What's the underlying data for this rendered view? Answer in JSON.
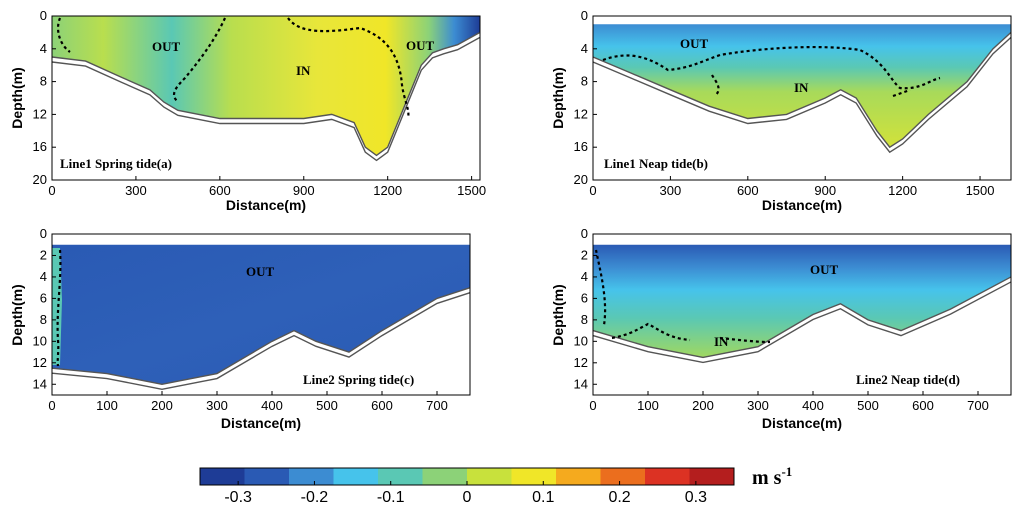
{
  "chart_data": [
    {
      "type": "heatmap",
      "label": "Line1 Spring tide(a)",
      "xlabel": "Distance(m)",
      "ylabel": "Depth(m)",
      "xlim": [
        0,
        1530
      ],
      "ylim": [
        0,
        20
      ],
      "xticks": [
        "0",
        "300",
        "600",
        "900",
        "1200",
        "1500"
      ],
      "yticks": [
        "0",
        "4",
        "8",
        "12",
        "16",
        "20"
      ],
      "surface_depth": 0,
      "bottom_profile": [
        [
          0,
          5
        ],
        [
          120,
          5.5
        ],
        [
          250,
          7.5
        ],
        [
          350,
          9
        ],
        [
          400,
          10.5
        ],
        [
          450,
          11.5
        ],
        [
          600,
          12.5
        ],
        [
          900,
          12.5
        ],
        [
          1000,
          12
        ],
        [
          1080,
          13
        ],
        [
          1120,
          16
        ],
        [
          1160,
          17
        ],
        [
          1200,
          16
        ],
        [
          1260,
          11
        ],
        [
          1320,
          6
        ],
        [
          1360,
          4.5
        ],
        [
          1400,
          4
        ],
        [
          1450,
          3.5
        ],
        [
          1530,
          2
        ]
      ],
      "annotations": [
        {
          "text": "OUT",
          "x": 400,
          "depth": 4
        },
        {
          "text": "IN",
          "x": 920,
          "depth": 7
        },
        {
          "text": "OUT",
          "x": 1430,
          "depth": 4
        }
      ]
    },
    {
      "type": "heatmap",
      "label": "Line1 Neap tide(b)",
      "xlabel": "Distance(m)",
      "ylabel": "Depth(m)",
      "xlim": [
        0,
        1620
      ],
      "ylim": [
        0,
        20
      ],
      "xticks": [
        "0",
        "300",
        "600",
        "900",
        "1200",
        "1500"
      ],
      "yticks": [
        "0",
        "4",
        "8",
        "12",
        "16",
        "20"
      ],
      "surface_depth": 1,
      "bottom_profile": [
        [
          0,
          5
        ],
        [
          150,
          7
        ],
        [
          300,
          9
        ],
        [
          450,
          11
        ],
        [
          600,
          12.5
        ],
        [
          750,
          12
        ],
        [
          900,
          10
        ],
        [
          960,
          9
        ],
        [
          1020,
          10
        ],
        [
          1100,
          14
        ],
        [
          1150,
          16
        ],
        [
          1200,
          15
        ],
        [
          1300,
          12
        ],
        [
          1450,
          8
        ],
        [
          1550,
          4
        ],
        [
          1620,
          2
        ]
      ],
      "annotations": [
        {
          "text": "OUT",
          "x": 420,
          "depth": 3.5
        },
        {
          "text": "IN",
          "x": 790,
          "depth": 9
        }
      ]
    },
    {
      "type": "heatmap",
      "label": "Line2 Spring tide(c)",
      "xlabel": "Distance(m)",
      "ylabel": "Depth(m)",
      "xlim": [
        0,
        760
      ],
      "ylim": [
        0,
        15
      ],
      "xticks": [
        "0",
        "100",
        "200",
        "300",
        "400",
        "500",
        "600",
        "700"
      ],
      "yticks": [
        "0",
        "2",
        "4",
        "6",
        "8",
        "10",
        "12",
        "14"
      ],
      "surface_depth": 1,
      "bottom_profile": [
        [
          0,
          12.5
        ],
        [
          100,
          13
        ],
        [
          200,
          14
        ],
        [
          300,
          13
        ],
        [
          400,
          10
        ],
        [
          440,
          9
        ],
        [
          480,
          10
        ],
        [
          540,
          11
        ],
        [
          600,
          9
        ],
        [
          700,
          6
        ],
        [
          760,
          5
        ]
      ],
      "annotations": [
        {
          "text": "OUT",
          "x": 420,
          "depth": 3.5
        }
      ]
    },
    {
      "type": "heatmap",
      "label": "Line2 Neap tide(d)",
      "xlabel": "Distance(m)",
      "ylabel": "Depth(m)",
      "xlim": [
        0,
        760
      ],
      "ylim": [
        0,
        15
      ],
      "xticks": [
        "0",
        "100",
        "200",
        "300",
        "400",
        "500",
        "600",
        "700"
      ],
      "yticks": [
        "0",
        "2",
        "4",
        "6",
        "8",
        "10",
        "12",
        "14"
      ],
      "surface_depth": 1,
      "bottom_profile": [
        [
          0,
          9
        ],
        [
          100,
          10.5
        ],
        [
          200,
          11.5
        ],
        [
          300,
          10.5
        ],
        [
          400,
          7.5
        ],
        [
          450,
          6.5
        ],
        [
          500,
          8
        ],
        [
          560,
          9
        ],
        [
          650,
          7
        ],
        [
          760,
          4
        ]
      ],
      "annotations": [
        {
          "text": "OUT",
          "x": 420,
          "depth": 3.5
        },
        {
          "text": "IN",
          "x": 240,
          "depth": 10.5
        }
      ]
    }
  ],
  "colorbar": {
    "label": "m s",
    "exponent": "-1",
    "range": [
      -0.35,
      0.35
    ],
    "ticks": [
      {
        "value": -0.3,
        "label": "-0.3"
      },
      {
        "value": -0.2,
        "label": "-0.2"
      },
      {
        "value": -0.1,
        "label": "-0.1"
      },
      {
        "value": 0,
        "label": "0"
      },
      {
        "value": 0.1,
        "label": "0.1"
      },
      {
        "value": 0.2,
        "label": "0.2"
      },
      {
        "value": 0.3,
        "label": "0.3"
      }
    ],
    "colors": [
      "#1e3c96",
      "#2a5ab4",
      "#3c8cd2",
      "#46c3eb",
      "#5ac8b4",
      "#8cd278",
      "#c8e13c",
      "#f0e628",
      "#f5aa1e",
      "#eb6e1e",
      "#dc3223",
      "#b41e1e"
    ]
  }
}
